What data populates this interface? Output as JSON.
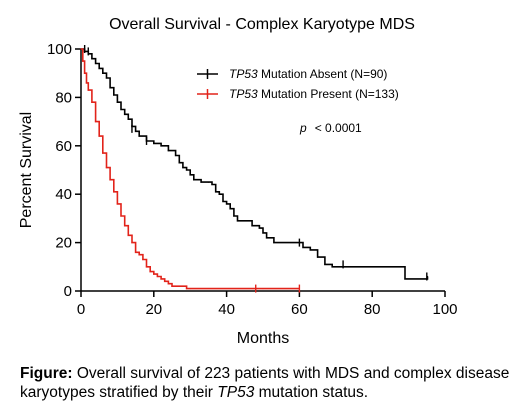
{
  "chart_data": {
    "type": "line",
    "title": "Overall Survival - Complex Karyotype MDS",
    "xlabel": "Months",
    "ylabel": "Percent Survival",
    "xlim": [
      0,
      100
    ],
    "ylim": [
      0,
      100
    ],
    "xticks": [
      "0",
      "20",
      "40",
      "60",
      "80",
      "100"
    ],
    "yticks": [
      "0",
      "20",
      "40",
      "60",
      "80",
      "100"
    ],
    "legend_position": "top-right",
    "annotation": {
      "label": "p",
      "value": "< 0.0001"
    },
    "series": [
      {
        "name_gene": "TP53",
        "name_rest": " Mutation Absent (N=90)",
        "color": "#000000",
        "points": [
          [
            0,
            100
          ],
          [
            0.5,
            100
          ],
          [
            1,
            99
          ],
          [
            2,
            98
          ],
          [
            3,
            96
          ],
          [
            4,
            94
          ],
          [
            5,
            92
          ],
          [
            6,
            90
          ],
          [
            7,
            88
          ],
          [
            8,
            84
          ],
          [
            9,
            81
          ],
          [
            10,
            78
          ],
          [
            11,
            75
          ],
          [
            12,
            73
          ],
          [
            13,
            71
          ],
          [
            14,
            68
          ],
          [
            15,
            66
          ],
          [
            16,
            64
          ],
          [
            18,
            62
          ],
          [
            20,
            61
          ],
          [
            22,
            60
          ],
          [
            24,
            58
          ],
          [
            26,
            56
          ],
          [
            27,
            53
          ],
          [
            28,
            51
          ],
          [
            29,
            50
          ],
          [
            30,
            48
          ],
          [
            31,
            46
          ],
          [
            33,
            45
          ],
          [
            35,
            45
          ],
          [
            36,
            44
          ],
          [
            37,
            41
          ],
          [
            38,
            40
          ],
          [
            39,
            37
          ],
          [
            40,
            36
          ],
          [
            41,
            34
          ],
          [
            42,
            31
          ],
          [
            43,
            29
          ],
          [
            46,
            29
          ],
          [
            47,
            27
          ],
          [
            49,
            26
          ],
          [
            50,
            24
          ],
          [
            51,
            22
          ],
          [
            52,
            22
          ],
          [
            53,
            20
          ],
          [
            60,
            20
          ],
          [
            61,
            18
          ],
          [
            63,
            17
          ],
          [
            65,
            14
          ],
          [
            67,
            11
          ],
          [
            69,
            10
          ],
          [
            88,
            10
          ],
          [
            89,
            5
          ],
          [
            95,
            5
          ],
          [
            95.2,
            6
          ]
        ],
        "censor_marks": [
          [
            1,
            100
          ],
          [
            2,
            99
          ],
          [
            14,
            67
          ],
          [
            18,
            62
          ],
          [
            60,
            20
          ],
          [
            72,
            11
          ],
          [
            95,
            6
          ]
        ]
      },
      {
        "name_gene": "TP53",
        "name_rest": " Mutation Present (N=133)",
        "color": "#e2231a",
        "points": [
          [
            0,
            100
          ],
          [
            0.5,
            95
          ],
          [
            1,
            90
          ],
          [
            1.5,
            86
          ],
          [
            2,
            83
          ],
          [
            3,
            78
          ],
          [
            4,
            70
          ],
          [
            5,
            64
          ],
          [
            6,
            57
          ],
          [
            7,
            51
          ],
          [
            8,
            46
          ],
          [
            9,
            41
          ],
          [
            10,
            36
          ],
          [
            11,
            31
          ],
          [
            12,
            27
          ],
          [
            13,
            23
          ],
          [
            14,
            20
          ],
          [
            15,
            16
          ],
          [
            16,
            15
          ],
          [
            17,
            13
          ],
          [
            18,
            10
          ],
          [
            19,
            8
          ],
          [
            20,
            7
          ],
          [
            21,
            6
          ],
          [
            22,
            5
          ],
          [
            23,
            4
          ],
          [
            24,
            3
          ],
          [
            25,
            2
          ],
          [
            26,
            2
          ],
          [
            28,
            2
          ],
          [
            29,
            1
          ],
          [
            30,
            1
          ],
          [
            50,
            1
          ],
          [
            60,
            1
          ]
        ],
        "censor_marks": [
          [
            48,
            1
          ],
          [
            60,
            1
          ]
        ]
      }
    ]
  },
  "caption": {
    "lead": "Figure:",
    "text1": " Overall survival of 223 patients with MDS and complex disease karyotypes stratified by their ",
    "gene": "TP53",
    "text2": " mutation status."
  }
}
